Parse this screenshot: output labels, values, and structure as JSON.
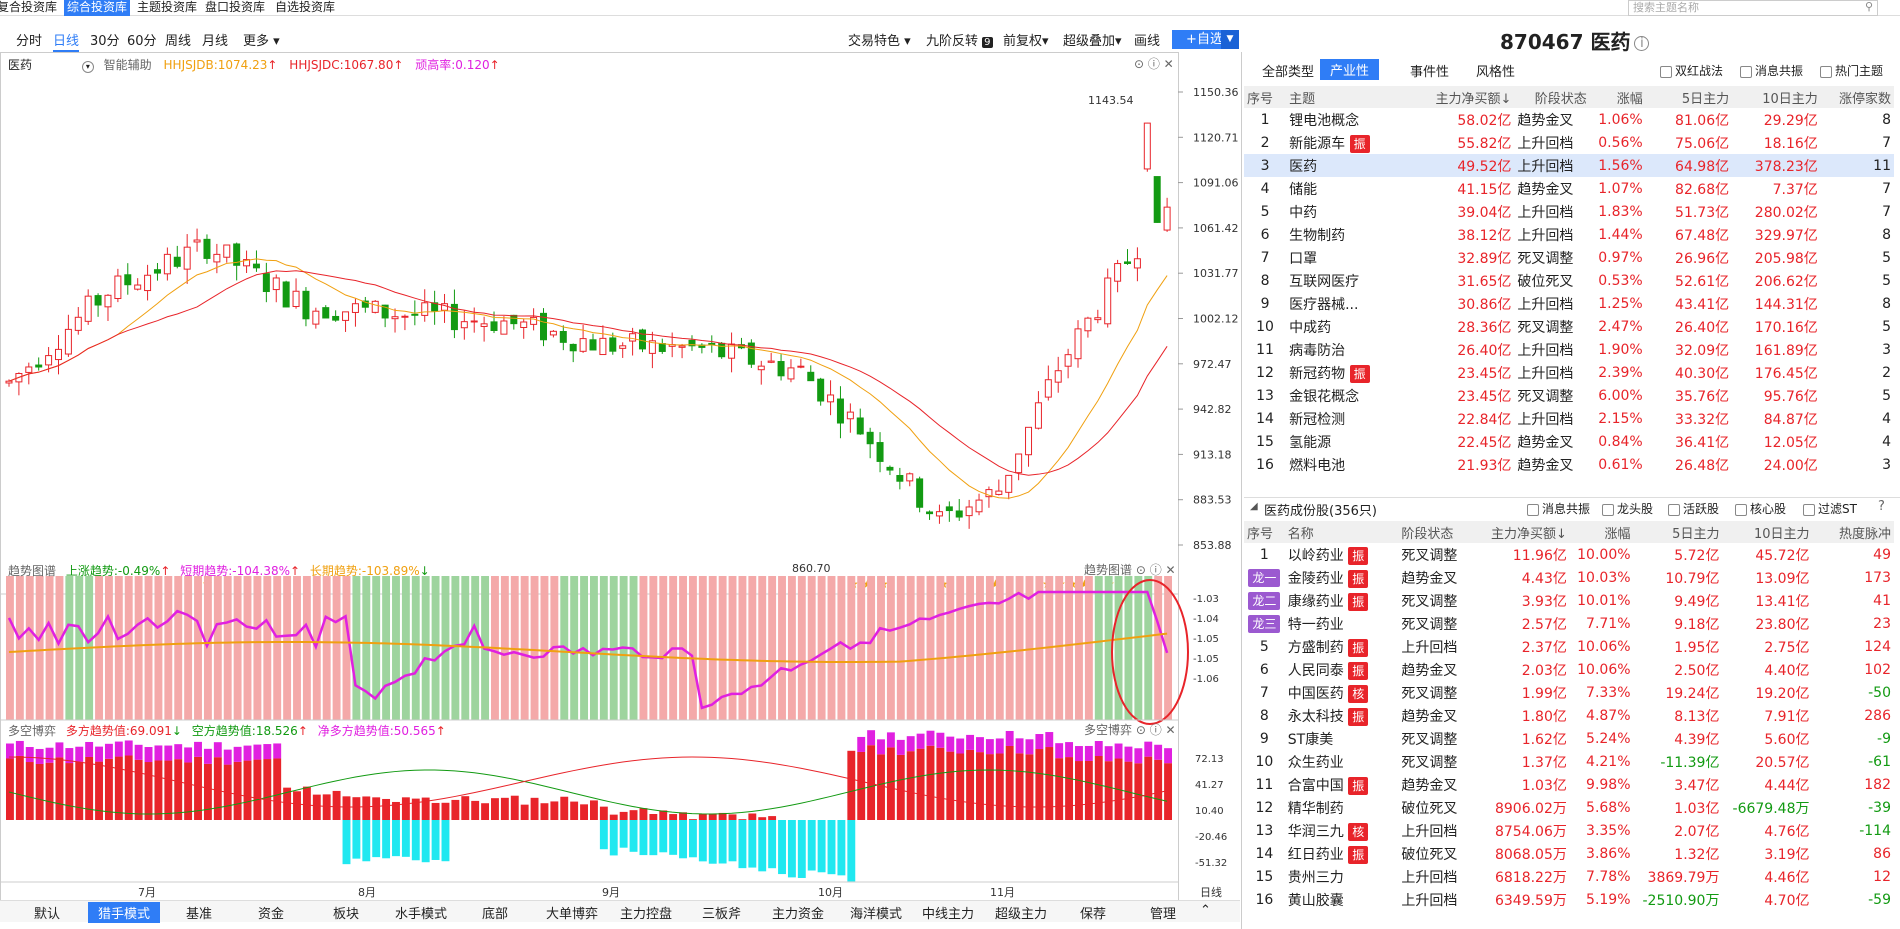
{
  "topnav": {
    "tabs": [
      "复合投资库",
      "综合投资库",
      "主题投资库",
      "盘口投资库",
      "自选投资库"
    ],
    "active": 1,
    "search_placeholder": "搜索主题名称"
  },
  "toolbar": {
    "periods": [
      "分时",
      "日线",
      "30分",
      "60分",
      "周线",
      "月线",
      "更多"
    ],
    "active_period": 1,
    "right_items": [
      "交易特色",
      "九阶反转",
      "前复权",
      "超级叠加",
      "画线"
    ],
    "nine_badge": "9",
    "add_button": "+自选",
    "dropdown": "▼"
  },
  "stock": {
    "code": "870467",
    "name": "医药",
    "info_icon": "i"
  },
  "kline_panel": {
    "name": "医药",
    "assist": "智能辅助",
    "ind1": "HHJSJDB:1074.23",
    "ind2": "HHJSJDC:1067.80",
    "ind3": "顽高率:0.120",
    "y_ticks": [
      "1150.36",
      "1120.71",
      "1091.06",
      "1061.42",
      "1031.77",
      "1002.12",
      "972.47",
      "942.82",
      "913.18",
      "883.53",
      "853.88"
    ],
    "high_label": "1143.54",
    "low_label": "860.70",
    "controls": "⊙ ⓘ ✕"
  },
  "trend_panel": {
    "name": "趋势图谱",
    "up": "上涨趋势:-0.49%",
    "short": "短期趋势:-104.38%",
    "long": "长期趋势:-103.89%",
    "corner": "趋势图谱",
    "y_ticks": [
      "-1.03",
      "-1.04",
      "-1.05",
      "-1.05",
      "-1.06"
    ]
  },
  "bs_panel": {
    "name": "多空博弈",
    "long": "多方趋势值:69.091",
    "short": "空方趋势值:18.526",
    "net": "净多方趋势值:50.565",
    "corner": "多空博弈",
    "y_ticks": [
      "72.13",
      "41.27",
      "10.40",
      "-20.46",
      "-51.32"
    ]
  },
  "x_axis": {
    "labels": [
      "7月",
      "8月",
      "9月",
      "10月",
      "11月"
    ],
    "period": "日线"
  },
  "bottombar": {
    "items": [
      "默认",
      "猎手模式",
      "基准",
      "资金",
      "板块",
      "水手模式",
      "底部",
      "大单博弈",
      "主力控盘",
      "三板斧",
      "主力资金",
      "海洋模式",
      "中线主力",
      "超级主力",
      "保荐",
      "管理"
    ],
    "active": 1
  },
  "sector_filter": {
    "tabs": [
      "全部类型",
      "产业性",
      "事件性",
      "风格性"
    ],
    "active": 1,
    "checks": [
      "双红战法",
      "消息共振",
      "热门主题"
    ]
  },
  "sector_table": {
    "headers": [
      "序号",
      "主题",
      "主力净买额↓",
      "阶段状态",
      "涨幅",
      "5日主力",
      "10日主力",
      "涨停家数"
    ],
    "rows": [
      [
        "1",
        "锂电池概念",
        "",
        "58.02亿",
        "趋势金叉",
        "1.06%",
        "81.06亿",
        "29.29亿",
        "8"
      ],
      [
        "2",
        "新能源车",
        "振",
        "55.82亿",
        "上升回档",
        "0.56%",
        "75.06亿",
        "18.16亿",
        "7"
      ],
      [
        "3",
        "医药",
        "",
        "49.52亿",
        "上升回档",
        "1.56%",
        "64.98亿",
        "378.23亿",
        "11"
      ],
      [
        "4",
        "储能",
        "",
        "41.15亿",
        "趋势金叉",
        "1.07%",
        "82.68亿",
        "7.37亿",
        "7"
      ],
      [
        "5",
        "中药",
        "",
        "39.04亿",
        "上升回档",
        "1.83%",
        "51.73亿",
        "280.02亿",
        "7"
      ],
      [
        "6",
        "生物制药",
        "",
        "38.12亿",
        "上升回档",
        "1.44%",
        "67.48亿",
        "329.97亿",
        "8"
      ],
      [
        "7",
        "口罩",
        "",
        "32.89亿",
        "死叉调整",
        "0.97%",
        "26.96亿",
        "205.98亿",
        "5"
      ],
      [
        "8",
        "互联网医疗",
        "",
        "31.65亿",
        "破位死叉",
        "0.53%",
        "52.61亿",
        "206.62亿",
        "5"
      ],
      [
        "9",
        "医疗器械...",
        "",
        "30.86亿",
        "上升回档",
        "1.25%",
        "43.41亿",
        "144.31亿",
        "8"
      ],
      [
        "10",
        "中成药",
        "",
        "28.36亿",
        "死叉调整",
        "2.47%",
        "26.40亿",
        "170.16亿",
        "5"
      ],
      [
        "11",
        "病毒防治",
        "",
        "26.40亿",
        "上升回档",
        "1.90%",
        "32.09亿",
        "161.89亿",
        "3"
      ],
      [
        "12",
        "新冠药物",
        "振",
        "23.45亿",
        "上升回档",
        "2.39%",
        "40.30亿",
        "176.45亿",
        "2"
      ],
      [
        "13",
        "金银花概念",
        "",
        "23.45亿",
        "死叉调整",
        "6.00%",
        "35.76亿",
        "95.76亿",
        "5"
      ],
      [
        "14",
        "新冠检测",
        "",
        "22.84亿",
        "上升回档",
        "2.15%",
        "33.32亿",
        "84.87亿",
        "4"
      ],
      [
        "15",
        "氢能源",
        "",
        "22.45亿",
        "趋势金叉",
        "0.84%",
        "36.41亿",
        "12.05亿",
        "4"
      ],
      [
        "16",
        "燃料电池",
        "",
        "21.93亿",
        "趋势金叉",
        "0.61%",
        "26.48亿",
        "24.00亿",
        "3"
      ]
    ],
    "selected": 2
  },
  "stock_section": {
    "title": "医药成份股(356只)",
    "checks": [
      "消息共振",
      "龙头股",
      "活跃股",
      "核心股",
      "过滤ST"
    ],
    "help": "?"
  },
  "stock_table": {
    "headers": [
      "序号",
      "名称",
      "阶段状态",
      "主力净买额↓",
      "涨幅",
      "5日主力",
      "10日主力",
      "热度脉冲"
    ],
    "rows": [
      [
        "1",
        "",
        "以岭药业",
        "振",
        "死叉调整",
        "11.96亿",
        "10.00%",
        "5.72亿",
        "45.72亿",
        "49"
      ],
      [
        "龙一",
        "p",
        "金陵药业",
        "振",
        "趋势金叉",
        "4.43亿",
        "10.03%",
        "10.79亿",
        "13.09亿",
        "173"
      ],
      [
        "龙二",
        "p",
        "康缘药业",
        "振",
        "死叉调整",
        "3.93亿",
        "10.01%",
        "9.49亿",
        "13.41亿",
        "41"
      ],
      [
        "龙三",
        "p",
        "特一药业",
        "",
        "死叉调整",
        "2.57亿",
        "7.71%",
        "9.18亿",
        "23.80亿",
        "23"
      ],
      [
        "5",
        "",
        "方盛制药",
        "振",
        "上升回档",
        "2.37亿",
        "10.06%",
        "1.95亿",
        "2.75亿",
        "124"
      ],
      [
        "6",
        "",
        "人民同泰",
        "振",
        "趋势金叉",
        "2.03亿",
        "10.06%",
        "2.50亿",
        "4.40亿",
        "102"
      ],
      [
        "7",
        "",
        "中国医药",
        "核",
        "死叉调整",
        "1.99亿",
        "7.33%",
        "19.24亿",
        "19.20亿",
        "-50"
      ],
      [
        "8",
        "",
        "永太科技",
        "振",
        "趋势金叉",
        "1.80亿",
        "4.87%",
        "8.13亿",
        "7.91亿",
        "286"
      ],
      [
        "9",
        "",
        "ST康美",
        "",
        "死叉调整",
        "1.62亿",
        "5.24%",
        "4.39亿",
        "5.60亿",
        "-9"
      ],
      [
        "10",
        "",
        "众生药业",
        "",
        "死叉调整",
        "1.37亿",
        "4.21%",
        "-11.39亿",
        "20.57亿",
        "-61"
      ],
      [
        "11",
        "",
        "合富中国",
        "振",
        "趋势金叉",
        "1.03亿",
        "9.98%",
        "3.47亿",
        "4.44亿",
        "182"
      ],
      [
        "12",
        "",
        "精华制药",
        "",
        "破位死叉",
        "8906.02万",
        "5.68%",
        "1.03亿",
        "-6679.48万",
        "-39"
      ],
      [
        "13",
        "",
        "华润三九",
        "核",
        "上升回档",
        "8754.06万",
        "3.35%",
        "2.07亿",
        "4.76亿",
        "-114"
      ],
      [
        "14",
        "",
        "红日药业",
        "振",
        "破位死叉",
        "8068.05万",
        "3.86%",
        "1.32亿",
        "3.19亿",
        "86"
      ],
      [
        "15",
        "",
        "贵州三力",
        "",
        "上升回档",
        "6818.22万",
        "7.78%",
        "3869.79万",
        "4.46亿",
        "12"
      ],
      [
        "16",
        "",
        "黄山胶囊",
        "",
        "上升回档",
        "6349.59万",
        "5.19%",
        "-2510.90万",
        "4.70亿",
        "-59"
      ]
    ]
  },
  "colors": {
    "up": "#e8242a",
    "down": "#129a12",
    "accent": "#2f7df6",
    "magenta": "#e020e0",
    "orange": "#f0a010"
  }
}
